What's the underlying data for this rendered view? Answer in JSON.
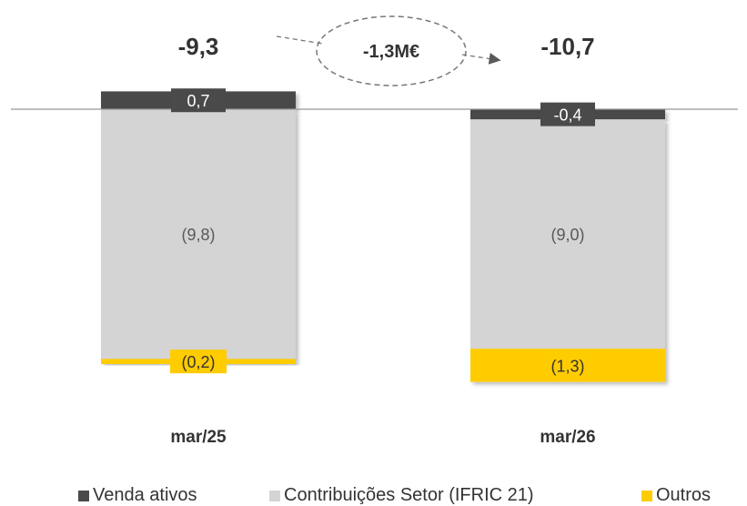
{
  "chart_data": {
    "type": "bar",
    "stacked": true,
    "categories": [
      "mar/25",
      "mar/26"
    ],
    "totals": [
      "-9,3",
      "-10,7"
    ],
    "change_label": "-1,3M€",
    "series": [
      {
        "name": "Venda ativos",
        "color": "#4a4a4a",
        "values": [
          0.7,
          -0.4
        ],
        "labels": [
          "0,7",
          "-0,4"
        ]
      },
      {
        "name": "Contribuições Setor (IFRIC 21)",
        "color": "#d4d4d4",
        "values": [
          -9.8,
          -9.0
        ],
        "labels": [
          "(9,8)",
          "(9,0)"
        ]
      },
      {
        "name": "Outros",
        "color": "#ffcc00",
        "values": [
          -0.2,
          -1.3
        ],
        "labels": [
          "(0,2)",
          "(1,3)"
        ]
      }
    ],
    "legend_position": "bottom",
    "grid": false
  }
}
